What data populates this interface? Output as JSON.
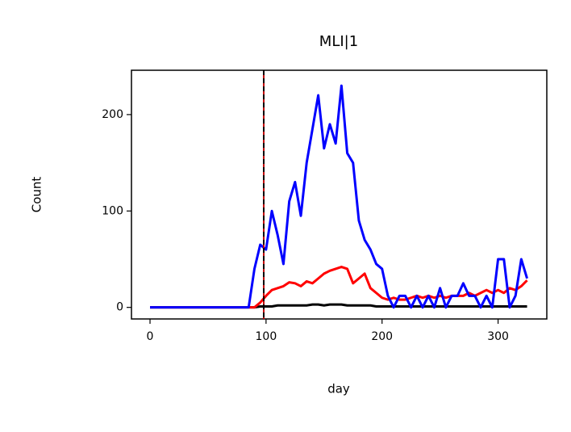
{
  "chart_data": {
    "type": "line",
    "title": "MLI|1",
    "x_label": "day",
    "y_label": "Count",
    "x": [
      0,
      5,
      10,
      15,
      20,
      25,
      30,
      35,
      40,
      45,
      50,
      55,
      60,
      65,
      70,
      75,
      80,
      85,
      90,
      95,
      100,
      105,
      110,
      115,
      120,
      125,
      130,
      135,
      140,
      145,
      150,
      155,
      160,
      165,
      170,
      175,
      180,
      185,
      190,
      195,
      200,
      205,
      210,
      215,
      220,
      225,
      230,
      235,
      240,
      245,
      250,
      255,
      260,
      265,
      270,
      275,
      280,
      285,
      290,
      295,
      300,
      305,
      310,
      315,
      320,
      325
    ],
    "series": [
      {
        "color": "#000000",
        "values": [
          0,
          0,
          0,
          0,
          0,
          0,
          0,
          0,
          0,
          0,
          0,
          0,
          0,
          0,
          0,
          0,
          0,
          0,
          0,
          1,
          1,
          1,
          2,
          2,
          2,
          2,
          2,
          2,
          3,
          3,
          2,
          3,
          3,
          3,
          2,
          2,
          2,
          2,
          2,
          1,
          1,
          1,
          1,
          1,
          1,
          1,
          1,
          1,
          1,
          1,
          1,
          1,
          1,
          1,
          1,
          1,
          1,
          1,
          1,
          1,
          1,
          1,
          1,
          1,
          1,
          1
        ]
      },
      {
        "color": "#ff0000",
        "values": [
          0,
          0,
          0,
          0,
          0,
          0,
          0,
          0,
          0,
          0,
          0,
          0,
          0,
          0,
          0,
          0,
          0,
          0,
          0,
          5,
          12,
          18,
          20,
          22,
          26,
          25,
          22,
          27,
          25,
          30,
          35,
          38,
          40,
          42,
          40,
          25,
          30,
          35,
          20,
          15,
          10,
          8,
          10,
          8,
          8,
          10,
          12,
          10,
          12,
          10,
          12,
          10,
          12,
          12,
          12,
          15,
          12,
          15,
          18,
          15,
          18,
          15,
          20,
          18,
          22,
          28
        ]
      },
      {
        "color": "#0000ff",
        "values": [
          0,
          0,
          0,
          0,
          0,
          0,
          0,
          0,
          0,
          0,
          0,
          0,
          0,
          0,
          0,
          0,
          0,
          0,
          40,
          65,
          60,
          100,
          75,
          45,
          110,
          130,
          95,
          150,
          185,
          220,
          165,
          190,
          170,
          230,
          160,
          150,
          90,
          70,
          60,
          45,
          40,
          12,
          0,
          12,
          12,
          0,
          12,
          0,
          12,
          0,
          20,
          0,
          12,
          12,
          25,
          12,
          12,
          0,
          12,
          0,
          50,
          50,
          0,
          12,
          50,
          30
        ]
      }
    ],
    "vline_x": 98,
    "xlim": [
      -16,
      342
    ],
    "xticks": [
      0,
      100,
      200,
      300
    ],
    "ylim": [
      -12,
      246
    ],
    "yticks": [
      0,
      100,
      200
    ],
    "grid": false
  }
}
